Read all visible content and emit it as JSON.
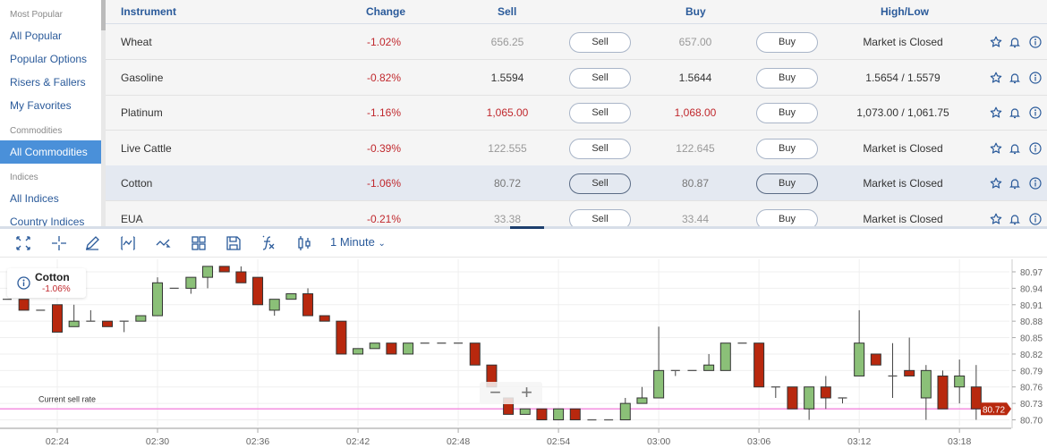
{
  "sidebar": {
    "sections": [
      {
        "heading": "Most Popular",
        "items": [
          {
            "label": "All Popular"
          },
          {
            "label": "Popular Options"
          },
          {
            "label": "Risers & Fallers"
          },
          {
            "label": "My Favorites"
          }
        ]
      },
      {
        "heading": "Commodities",
        "items": [
          {
            "label": "All Commodities",
            "active": true
          }
        ]
      },
      {
        "heading": "Indices",
        "items": [
          {
            "label": "All Indices"
          },
          {
            "label": "Country Indices"
          }
        ]
      }
    ]
  },
  "table": {
    "headers": {
      "instrument": "Instrument",
      "change": "Change",
      "sell": "Sell",
      "buy": "Buy",
      "highlow": "High/Low"
    },
    "sell_button": "Sell",
    "buy_button": "Buy",
    "rows": [
      {
        "instrument": "Wheat",
        "change": "-1.02%",
        "sell": "656.25",
        "buy": "657.00",
        "highlow": "Market is Closed",
        "price_color": "#999999"
      },
      {
        "instrument": "Gasoline",
        "change": "-0.82%",
        "sell": "1.5594",
        "buy": "1.5644",
        "highlow": "1.5654 / 1.5579",
        "price_color": "#333333"
      },
      {
        "instrument": "Platinum",
        "change": "-1.16%",
        "sell": "1,065.00",
        "buy": "1,068.00",
        "highlow": "1,073.00 / 1,061.75",
        "price_color": "#c0282d"
      },
      {
        "instrument": "Live Cattle",
        "change": "-0.39%",
        "sell": "122.555",
        "buy": "122.645",
        "highlow": "Market is Closed",
        "price_color": "#999999"
      },
      {
        "instrument": "Cotton",
        "change": "-1.06%",
        "sell": "80.72",
        "buy": "80.87",
        "highlow": "Market is Closed",
        "price_color": "#777777",
        "selected": true
      },
      {
        "instrument": "EUA",
        "change": "-0.21%",
        "sell": "33.38",
        "buy": "33.44",
        "highlow": "Market is Closed",
        "price_color": "#999999"
      }
    ]
  },
  "toolbar": {
    "icons": [
      "fullscreen-icon",
      "crosshair-icon",
      "draw-icon",
      "indicator-icon",
      "trend-icon",
      "layout-icon",
      "save-icon",
      "function-icon",
      "candlestick-icon"
    ],
    "interval": "1 Minute"
  },
  "chart_info": {
    "name": "Cotton",
    "change": "-1.06%"
  },
  "zoom": {
    "minus": "−",
    "plus": "+"
  },
  "colors": {
    "up": "#8bc078",
    "down": "#b8280e",
    "current_line": "#f48fe0",
    "accent": "#2a5a9a",
    "negative": "#c0282d"
  },
  "chart_data": {
    "type": "candlestick",
    "current_label": "Current sell rate",
    "current_value": "80.72",
    "ylim": [
      80.685,
      80.985
    ],
    "yticks": [
      "80.97",
      "80.94",
      "80.91",
      "80.88",
      "80.85",
      "80.82",
      "80.79",
      "80.76",
      "80.73",
      "80.70"
    ],
    "xticks": [
      "02:24",
      "02:30",
      "02:36",
      "02:42",
      "02:48",
      "02:54",
      "03:00",
      "03:06",
      "03:12",
      "03:18"
    ],
    "grid": true,
    "candles": [
      {
        "t": "02:21",
        "o": 80.92,
        "h": 80.92,
        "l": 80.92,
        "c": 80.92
      },
      {
        "t": "02:22",
        "o": 80.92,
        "h": 80.92,
        "l": 80.9,
        "c": 80.9
      },
      {
        "t": "02:23",
        "o": 80.9,
        "h": 80.9,
        "l": 80.9,
        "c": 80.9
      },
      {
        "t": "02:24",
        "o": 80.91,
        "h": 80.91,
        "l": 80.86,
        "c": 80.86
      },
      {
        "t": "02:25",
        "o": 80.87,
        "h": 80.91,
        "l": 80.87,
        "c": 80.88
      },
      {
        "t": "02:26",
        "o": 80.88,
        "h": 80.9,
        "l": 80.88,
        "c": 80.88
      },
      {
        "t": "02:27",
        "o": 80.88,
        "h": 80.88,
        "l": 80.87,
        "c": 80.87
      },
      {
        "t": "02:28",
        "o": 80.88,
        "h": 80.88,
        "l": 80.86,
        "c": 80.88
      },
      {
        "t": "02:29",
        "o": 80.88,
        "h": 80.89,
        "l": 80.88,
        "c": 80.89
      },
      {
        "t": "02:30",
        "o": 80.89,
        "h": 80.96,
        "l": 80.89,
        "c": 80.95
      },
      {
        "t": "02:31",
        "o": 80.94,
        "h": 80.94,
        "l": 80.94,
        "c": 80.94
      },
      {
        "t": "02:32",
        "o": 80.94,
        "h": 80.96,
        "l": 80.93,
        "c": 80.96
      },
      {
        "t": "02:33",
        "o": 80.96,
        "h": 80.98,
        "l": 80.94,
        "c": 80.98
      },
      {
        "t": "02:34",
        "o": 80.98,
        "h": 80.98,
        "l": 80.97,
        "c": 80.97
      },
      {
        "t": "02:35",
        "o": 80.97,
        "h": 80.98,
        "l": 80.95,
        "c": 80.95
      },
      {
        "t": "02:36",
        "o": 80.96,
        "h": 80.96,
        "l": 80.91,
        "c": 80.91
      },
      {
        "t": "02:37",
        "o": 80.9,
        "h": 80.92,
        "l": 80.89,
        "c": 80.92
      },
      {
        "t": "02:38",
        "o": 80.92,
        "h": 80.93,
        "l": 80.92,
        "c": 80.93
      },
      {
        "t": "02:39",
        "o": 80.93,
        "h": 80.94,
        "l": 80.89,
        "c": 80.89
      },
      {
        "t": "02:40",
        "o": 80.89,
        "h": 80.89,
        "l": 80.88,
        "c": 80.88
      },
      {
        "t": "02:41",
        "o": 80.88,
        "h": 80.88,
        "l": 80.82,
        "c": 80.82
      },
      {
        "t": "02:42",
        "o": 80.82,
        "h": 80.83,
        "l": 80.82,
        "c": 80.83
      },
      {
        "t": "02:43",
        "o": 80.83,
        "h": 80.84,
        "l": 80.83,
        "c": 80.84
      },
      {
        "t": "02:44",
        "o": 80.84,
        "h": 80.84,
        "l": 80.82,
        "c": 80.82
      },
      {
        "t": "02:45",
        "o": 80.82,
        "h": 80.84,
        "l": 80.82,
        "c": 80.84
      },
      {
        "t": "02:46",
        "o": 80.84,
        "h": 80.84,
        "l": 80.84,
        "c": 80.84
      },
      {
        "t": "02:47",
        "o": 80.84,
        "h": 80.84,
        "l": 80.84,
        "c": 80.84
      },
      {
        "t": "02:48",
        "o": 80.84,
        "h": 80.84,
        "l": 80.84,
        "c": 80.84
      },
      {
        "t": "02:49",
        "o": 80.84,
        "h": 80.84,
        "l": 80.8,
        "c": 80.8
      },
      {
        "t": "02:50",
        "o": 80.8,
        "h": 80.8,
        "l": 80.76,
        "c": 80.76
      },
      {
        "t": "02:51",
        "o": 80.74,
        "h": 80.74,
        "l": 80.71,
        "c": 80.71
      },
      {
        "t": "02:52",
        "o": 80.71,
        "h": 80.72,
        "l": 80.71,
        "c": 80.72
      },
      {
        "t": "02:53",
        "o": 80.72,
        "h": 80.72,
        "l": 80.7,
        "c": 80.7
      },
      {
        "t": "02:54",
        "o": 80.7,
        "h": 80.72,
        "l": 80.7,
        "c": 80.72
      },
      {
        "t": "02:55",
        "o": 80.72,
        "h": 80.72,
        "l": 80.7,
        "c": 80.7
      },
      {
        "t": "02:56",
        "o": 80.7,
        "h": 80.7,
        "l": 80.7,
        "c": 80.7
      },
      {
        "t": "02:57",
        "o": 80.7,
        "h": 80.7,
        "l": 80.7,
        "c": 80.7
      },
      {
        "t": "02:58",
        "o": 80.7,
        "h": 80.74,
        "l": 80.7,
        "c": 80.73
      },
      {
        "t": "02:59",
        "o": 80.73,
        "h": 80.76,
        "l": 80.73,
        "c": 80.74
      },
      {
        "t": "03:00",
        "o": 80.74,
        "h": 80.87,
        "l": 80.74,
        "c": 80.79
      },
      {
        "t": "03:01",
        "o": 80.79,
        "h": 80.79,
        "l": 80.78,
        "c": 80.79
      },
      {
        "t": "03:02",
        "o": 80.79,
        "h": 80.79,
        "l": 80.79,
        "c": 80.79
      },
      {
        "t": "03:03",
        "o": 80.79,
        "h": 80.82,
        "l": 80.79,
        "c": 80.8
      },
      {
        "t": "03:04",
        "o": 80.79,
        "h": 80.84,
        "l": 80.79,
        "c": 80.84
      },
      {
        "t": "03:05",
        "o": 80.84,
        "h": 80.84,
        "l": 80.84,
        "c": 80.84
      },
      {
        "t": "03:06",
        "o": 80.84,
        "h": 80.84,
        "l": 80.76,
        "c": 80.76
      },
      {
        "t": "03:07",
        "o": 80.76,
        "h": 80.76,
        "l": 80.74,
        "c": 80.76
      },
      {
        "t": "03:08",
        "o": 80.76,
        "h": 80.76,
        "l": 80.72,
        "c": 80.72
      },
      {
        "t": "03:09",
        "o": 80.72,
        "h": 80.76,
        "l": 80.7,
        "c": 80.76
      },
      {
        "t": "03:10",
        "o": 80.76,
        "h": 80.78,
        "l": 80.72,
        "c": 80.74
      },
      {
        "t": "03:11",
        "o": 80.74,
        "h": 80.74,
        "l": 80.73,
        "c": 80.74
      },
      {
        "t": "03:12",
        "o": 80.78,
        "h": 80.9,
        "l": 80.78,
        "c": 80.84
      },
      {
        "t": "03:13",
        "o": 80.82,
        "h": 80.82,
        "l": 80.8,
        "c": 80.8
      },
      {
        "t": "03:14",
        "o": 80.78,
        "h": 80.84,
        "l": 80.74,
        "c": 80.78
      },
      {
        "t": "03:15",
        "o": 80.79,
        "h": 80.85,
        "l": 80.78,
        "c": 80.78
      },
      {
        "t": "03:16",
        "o": 80.74,
        "h": 80.8,
        "l": 80.7,
        "c": 80.79
      },
      {
        "t": "03:17",
        "o": 80.78,
        "h": 80.79,
        "l": 80.72,
        "c": 80.72
      },
      {
        "t": "03:18",
        "o": 80.76,
        "h": 80.81,
        "l": 80.73,
        "c": 80.78
      },
      {
        "t": "03:19",
        "o": 80.76,
        "h": 80.8,
        "l": 80.7,
        "c": 80.72
      }
    ]
  }
}
